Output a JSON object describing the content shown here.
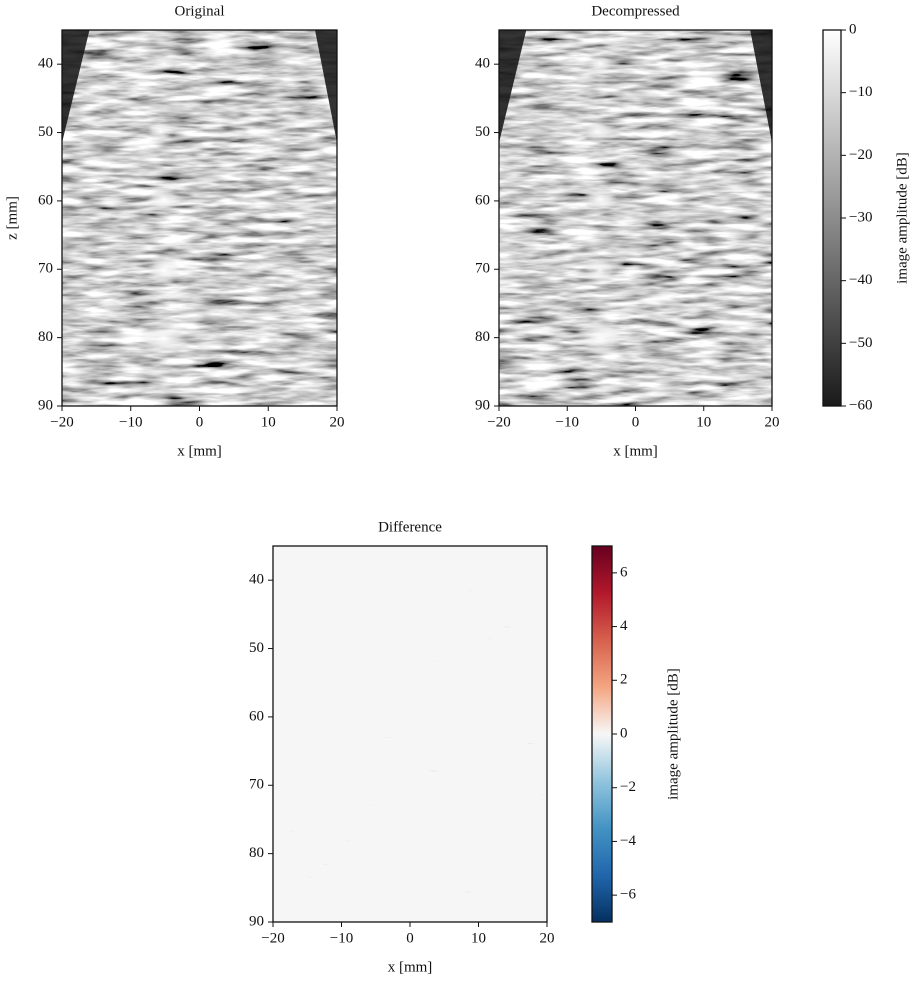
{
  "chart_data": [
    {
      "type": "image",
      "title": "Original",
      "xlabel": "x [mm]",
      "ylabel": "z [mm]",
      "xlim": [
        -20,
        20
      ],
      "xticks": [
        {
          "value": -20,
          "label": "−20"
        },
        {
          "value": -10,
          "label": "−10"
        },
        0,
        10,
        20
      ],
      "ylim": [
        90,
        35
      ],
      "yticks": [
        40,
        50,
        60,
        70,
        80,
        90
      ],
      "colormap": "gray"
    },
    {
      "type": "image",
      "title": "Decompressed",
      "xlabel": "x [mm]",
      "xlim": [
        -20,
        20
      ],
      "xticks": [
        {
          "value": -20,
          "label": "−20"
        },
        {
          "value": -10,
          "label": "−10"
        },
        0,
        10,
        20
      ],
      "ylim": [
        90,
        35
      ],
      "yticks": [
        40,
        50,
        60,
        70,
        80,
        90
      ],
      "colormap": "gray"
    },
    {
      "type": "colorbar",
      "label": "image amplitude [dB]",
      "ylim": [
        -60,
        0
      ],
      "yticks": [
        0,
        {
          "value": -10,
          "label": "−10"
        },
        {
          "value": -20,
          "label": "−20"
        },
        {
          "value": -30,
          "label": "−30"
        },
        {
          "value": -40,
          "label": "−40"
        },
        {
          "value": -50,
          "label": "−50"
        },
        {
          "value": -60,
          "label": "−60"
        }
      ],
      "colors": [
        "#1a1a1a",
        "#ffffff"
      ]
    },
    {
      "type": "image",
      "title": "Difference",
      "xlabel": "x [mm]",
      "xlim": [
        -20,
        20
      ],
      "xticks": [
        {
          "value": -20,
          "label": "−20"
        },
        {
          "value": -10,
          "label": "−10"
        },
        0,
        10,
        20
      ],
      "ylim": [
        90,
        35
      ],
      "yticks": [
        40,
        50,
        60,
        70,
        80,
        90
      ],
      "colormap": "diff"
    },
    {
      "type": "colorbar",
      "label": "image amplitude [dB]",
      "ylim": [
        -7,
        7
      ],
      "yticks": [
        {
          "value": -6,
          "label": "−6"
        },
        {
          "value": -4,
          "label": "−4"
        },
        {
          "value": -2,
          "label": "−2"
        },
        0,
        2,
        4,
        6
      ],
      "colors": [
        "#053061",
        "#2166ac",
        "#4393c3",
        "#92c5de",
        "#f7f7f7",
        "#f4a582",
        "#d6604d",
        "#b2182b",
        "#67001f"
      ]
    }
  ]
}
